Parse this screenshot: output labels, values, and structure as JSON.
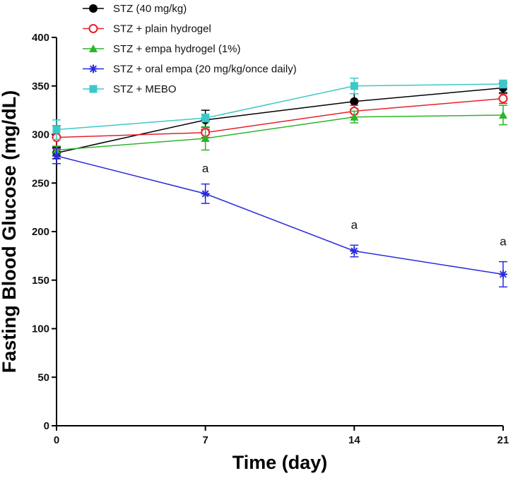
{
  "chart_data": {
    "type": "line",
    "title": "",
    "xlabel": "Time (day)",
    "ylabel": "Fasting Blood Glucose (mg/dL)",
    "x": [
      0,
      7,
      14,
      21
    ],
    "x_tick_labels": [
      "0",
      "7",
      "14",
      "21"
    ],
    "xlim": [
      0,
      21
    ],
    "ylim": [
      0,
      400
    ],
    "y_ticks": [
      0,
      50,
      100,
      150,
      200,
      250,
      300,
      350,
      400
    ],
    "grid": false,
    "legend_position": "top-left",
    "series": [
      {
        "name": "STZ (40 mg/kg)",
        "color": "#000000",
        "marker": "filled-circle",
        "values": [
          281,
          315,
          334,
          348
        ],
        "errors": [
          6,
          10,
          8,
          5
        ]
      },
      {
        "name": "STZ + plain hydrogel",
        "color": "#e8202a",
        "marker": "open-circle",
        "values": [
          297,
          302,
          324,
          337
        ],
        "errors": [
          12,
          5,
          6,
          5
        ]
      },
      {
        "name": "STZ + empa hydrogel (1%)",
        "color": "#2bb52b",
        "marker": "triangle",
        "values": [
          284,
          296,
          318,
          320
        ],
        "errors": [
          4,
          12,
          6,
          10
        ]
      },
      {
        "name": "STZ + oral empa (20 mg/kg/once daily)",
        "color": "#2a2adf",
        "marker": "asterisk",
        "values": [
          278,
          239,
          180,
          156
        ],
        "errors": [
          8,
          10,
          6,
          13
        ]
      },
      {
        "name": "STZ + MEBO",
        "color": "#3cc8c8",
        "marker": "square",
        "values": [
          305,
          317,
          350,
          352
        ],
        "errors": [
          10,
          4,
          8,
          4
        ]
      }
    ],
    "annotations": [
      {
        "x": 7,
        "y": 261,
        "text": "a"
      },
      {
        "x": 14,
        "y": 203,
        "text": "a"
      },
      {
        "x": 21,
        "y": 186,
        "text": "a"
      }
    ]
  }
}
